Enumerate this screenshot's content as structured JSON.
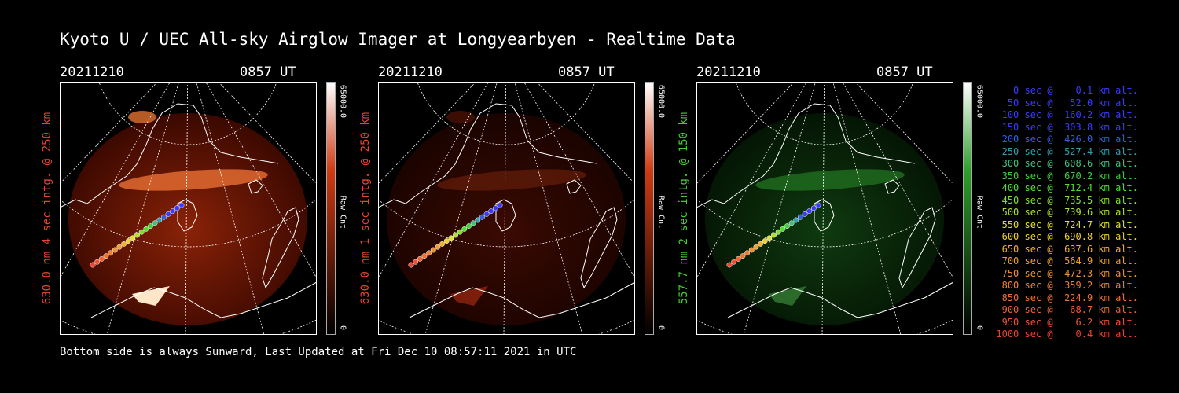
{
  "title": "Kyoto U / UEC All-sky Airglow Imager at Longyearbyen - Realtime Data",
  "footer": "Bottom side is always Sunward, Last Updated at Fri Dec 10 08:57:11 2021 in UTC",
  "panels": [
    {
      "date": "20211210",
      "time": "0857 UT",
      "ylabel": "630.0 nm 4 sec intg. @ 250 km",
      "label_color": "#e8452a",
      "cbar_max": "65000.0",
      "cbar_unit": "Raw Cnt",
      "cbar_min": "0",
      "cbar_color": "#d13a10",
      "intensity": "bright"
    },
    {
      "date": "20211210",
      "time": "0857 UT",
      "ylabel": "630.0 nm 1 sec intg. @ 250 km",
      "label_color": "#e8452a",
      "cbar_max": "65000.0",
      "cbar_unit": "Raw Cnt",
      "cbar_min": "0",
      "cbar_color": "#d13a10",
      "intensity": "dim"
    },
    {
      "date": "20211210",
      "time": "0857 UT",
      "ylabel": "557.7 nm 2 sec intg. @ 150 km",
      "label_color": "#44cc33",
      "cbar_max": "65000.0",
      "cbar_unit": "Raw Cnt",
      "cbar_min": "0",
      "cbar_color": "#2da02a",
      "intensity": "green"
    }
  ],
  "legend": [
    {
      "text": "   0 sec @    0.1 km alt.",
      "color": "#3b3bff"
    },
    {
      "text": "  50 sec @   52.0 km alt.",
      "color": "#3b3bff"
    },
    {
      "text": " 100 sec @  160.2 km alt.",
      "color": "#3b3bff"
    },
    {
      "text": " 150 sec @  303.8 km alt.",
      "color": "#3b3bff"
    },
    {
      "text": " 200 sec @  426.0 km alt.",
      "color": "#3060e0"
    },
    {
      "text": " 250 sec @  527.4 km alt.",
      "color": "#30a0b0"
    },
    {
      "text": " 300 sec @  608.6 km alt.",
      "color": "#40c080"
    },
    {
      "text": " 350 sec @  670.2 km alt.",
      "color": "#40d040"
    },
    {
      "text": " 400 sec @  712.4 km alt.",
      "color": "#50e030"
    },
    {
      "text": " 450 sec @  735.5 km alt.",
      "color": "#80e030"
    },
    {
      "text": " 500 sec @  739.6 km alt.",
      "color": "#b0e030"
    },
    {
      "text": " 550 sec @  724.7 km alt.",
      "color": "#e0e030"
    },
    {
      "text": " 600 sec @  690.8 km alt.",
      "color": "#f0d030"
    },
    {
      "text": " 650 sec @  637.6 km alt.",
      "color": "#f0b030"
    },
    {
      "text": " 700 sec @  564.9 km alt.",
      "color": "#f0a030"
    },
    {
      "text": " 750 sec @  472.3 km alt.",
      "color": "#f09030"
    },
    {
      "text": " 800 sec @  359.2 km alt.",
      "color": "#f08030"
    },
    {
      "text": " 850 sec @  224.9 km alt.",
      "color": "#f07030"
    },
    {
      "text": " 900 sec @   68.7 km alt.",
      "color": "#f06030"
    },
    {
      "text": " 950 sec @    6.2 km alt.",
      "color": "#f05030"
    },
    {
      "text": "1000 sec @    0.4 km alt.",
      "color": "#f04030"
    }
  ]
}
